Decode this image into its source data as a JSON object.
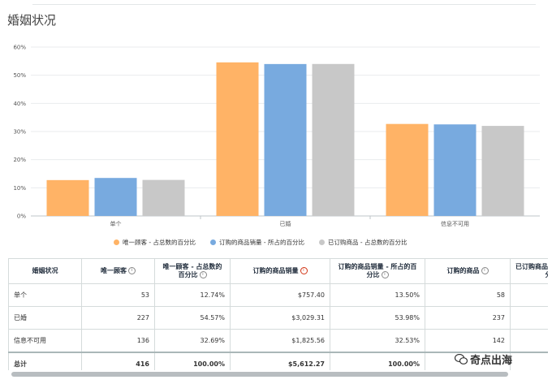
{
  "page": {
    "title": "婚姻状况"
  },
  "chart_data": {
    "type": "bar",
    "categories": [
      "单个",
      "已婚",
      "信息不可用"
    ],
    "series": [
      {
        "name": "唯一顾客 - 占总数的百分比",
        "color": "#ffb366",
        "values": [
          12.74,
          54.57,
          32.69
        ]
      },
      {
        "name": "订购的商品销量 - 所占的百分比",
        "color": "#78aadf",
        "values": [
          13.5,
          53.98,
          32.53
        ]
      },
      {
        "name": "已订购商品 - 占总数的百分比",
        "color": "#c8c8c8",
        "values": [
          12.8,
          54.0,
          32.0
        ]
      }
    ],
    "ylim": [
      0,
      60
    ],
    "yticks": [
      "0%",
      "10%",
      "20%",
      "30%",
      "40%",
      "50%",
      "60%"
    ],
    "grid": true,
    "legend": "bottom"
  },
  "table": {
    "headers": [
      {
        "label": "婚姻状况",
        "info": false
      },
      {
        "label": "唯一顾客",
        "info": true
      },
      {
        "label": "唯一顾客 - 占总数的百分比",
        "info": true
      },
      {
        "label": "订购的商品销量",
        "info": true,
        "info_color": "#d13212"
      },
      {
        "label": "订购的商品销量 - 所占的百分比",
        "info": true
      },
      {
        "label": "订购的商品",
        "info": true
      },
      {
        "label": "已订购商品 - 占总数的百分比",
        "info": false
      }
    ],
    "rows": [
      {
        "name": "单个",
        "c1": "53",
        "c2": "12.74%",
        "c3": "$757.40",
        "c4": "13.50%",
        "c5": "58",
        "c6": ""
      },
      {
        "name": "已婚",
        "c1": "227",
        "c2": "54.57%",
        "c3": "$3,029.31",
        "c4": "53.98%",
        "c5": "237",
        "c6": ""
      },
      {
        "name": "信息不可用",
        "c1": "136",
        "c2": "32.69%",
        "c3": "$1,825.56",
        "c4": "32.53%",
        "c5": "142",
        "c6": ""
      }
    ],
    "total": {
      "name": "总计",
      "c1": "416",
      "c2": "100.00%",
      "c3": "$5,612.27",
      "c4": "100.00%",
      "c5": "",
      "c6": ""
    }
  },
  "watermark": {
    "text": "奇点出海"
  }
}
